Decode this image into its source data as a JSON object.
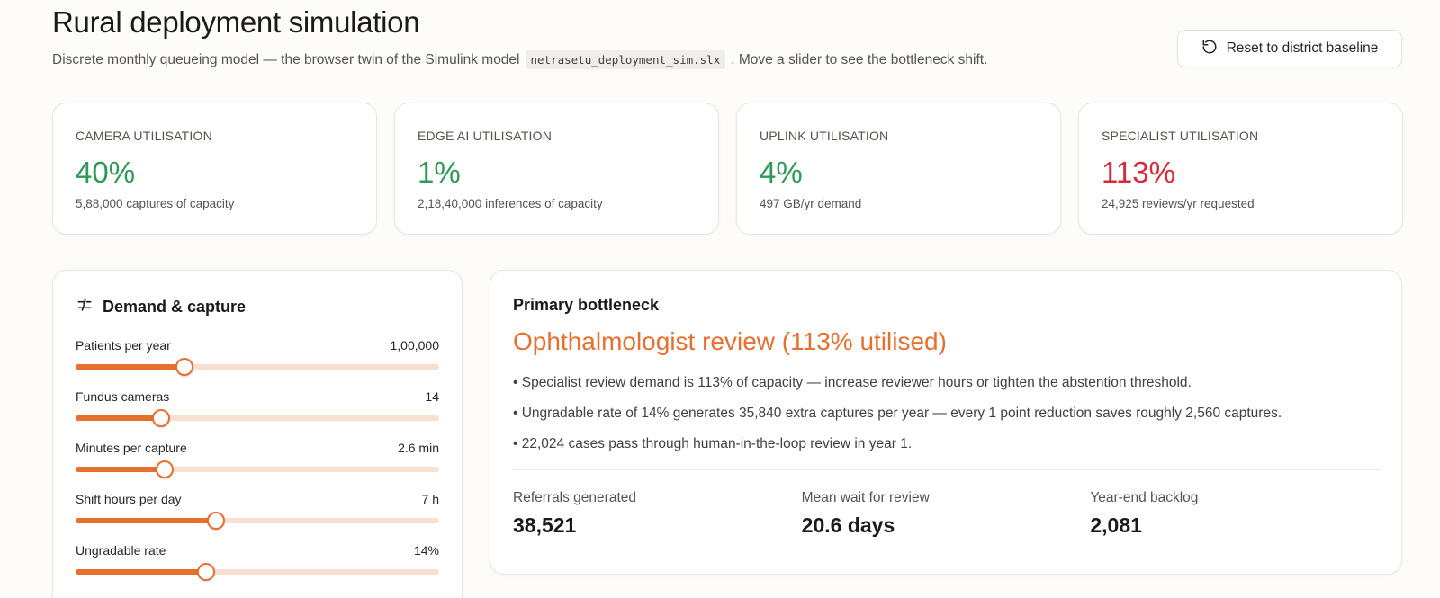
{
  "header": {
    "title": "Rural deployment simulation",
    "subtitle_before": "Discrete monthly queueing model — the browser twin of the Simulink model",
    "model_file": "netrasetu_deployment_sim.slx",
    "subtitle_after": ". Move a slider to see the bottleneck shift.",
    "reset_label": "Reset to district baseline"
  },
  "metrics": [
    {
      "label": "CAMERA UTILISATION",
      "value": "40%",
      "sub": "5,88,000 captures of capacity",
      "status": "ok"
    },
    {
      "label": "EDGE AI UTILISATION",
      "value": "1%",
      "sub": "2,18,40,000 inferences of capacity",
      "status": "ok"
    },
    {
      "label": "UPLINK UTILISATION",
      "value": "4%",
      "sub": "497 GB/yr demand",
      "status": "ok"
    },
    {
      "label": "SPECIALIST UTILISATION",
      "value": "113%",
      "sub": "24,925 reviews/yr requested",
      "status": "bad"
    }
  ],
  "colors": {
    "ok": "#2e9a55",
    "bad": "#d92a3a",
    "accent": "#e8702f"
  },
  "demand": {
    "title": "Demand & capture",
    "icon": "sliders-icon",
    "sliders": [
      {
        "label": "Patients per year",
        "value": "1,00,000",
        "fraction": 0.3
      },
      {
        "label": "Fundus cameras",
        "value": "14",
        "fraction": 0.235
      },
      {
        "label": "Minutes per capture",
        "value": "2.6 min",
        "fraction": 0.245
      },
      {
        "label": "Shift hours per day",
        "value": "7 h",
        "fraction": 0.385
      },
      {
        "label": "Ungradable rate",
        "value": "14%",
        "fraction": 0.36
      }
    ]
  },
  "bottleneck": {
    "label": "Primary bottleneck",
    "title": "Ophthalmologist review (113% utilised)",
    "notes": [
      "• Specialist review demand is 113% of capacity — increase reviewer hours or tighten the abstention threshold.",
      "• Ungradable rate of 14% generates 35,840 extra captures per year — every 1 point reduction saves roughly 2,560 captures.",
      "• 22,024 cases pass through human-in-the-loop review in year 1."
    ],
    "stats": [
      {
        "label": "Referrals generated",
        "value": "38,521"
      },
      {
        "label": "Mean wait for review",
        "value": "20.6 days"
      },
      {
        "label": "Year-end backlog",
        "value": "2,081"
      }
    ]
  }
}
